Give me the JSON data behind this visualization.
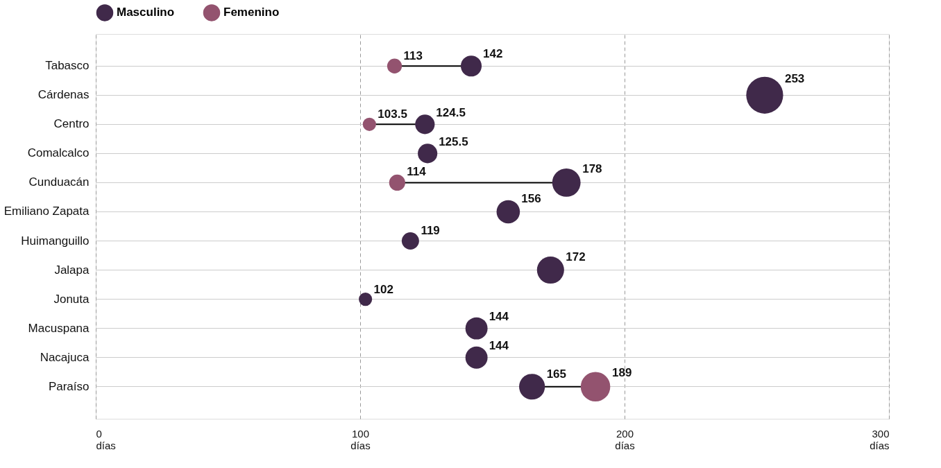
{
  "chart_data": {
    "type": "bubble",
    "orientation": "horizontal",
    "categories": [
      "Tabasco",
      "Cárdenas",
      "Centro",
      "Comalcalco",
      "Cunduacán",
      "Emiliano Zapata",
      "Huimanguillo",
      "Jalapa",
      "Jonuta",
      "Macuspana",
      "Nacajuca",
      "Paraíso"
    ],
    "series": [
      {
        "name": "Masculino",
        "color": "#40294a",
        "values": [
          142,
          253,
          124.5,
          125.5,
          178,
          156,
          119,
          172,
          102,
          144,
          144,
          165
        ],
        "sizes": [
          0.32,
          1,
          0.28,
          0.28,
          0.59,
          0.4,
          0.22,
          0.54,
          0.13,
          0.36,
          0.36,
          0.49
        ]
      },
      {
        "name": "Femenino",
        "color": "#93536f",
        "values": [
          113,
          null,
          103.5,
          null,
          114,
          null,
          null,
          null,
          null,
          null,
          null,
          189
        ],
        "sizes": [
          0.16,
          null,
          0.13,
          null,
          0.19,
          null,
          null,
          null,
          null,
          null,
          null,
          0.64
        ]
      }
    ],
    "xlim": [
      0,
      300
    ],
    "xticks": [
      {
        "value": 0,
        "label": "0 días"
      },
      {
        "value": 100,
        "label": "100 días"
      },
      {
        "value": 200,
        "label": "200 días"
      },
      {
        "value": 300,
        "label": "300 días"
      }
    ],
    "grid": true,
    "legend": "top",
    "data_labels": true,
    "marker": "circle"
  }
}
